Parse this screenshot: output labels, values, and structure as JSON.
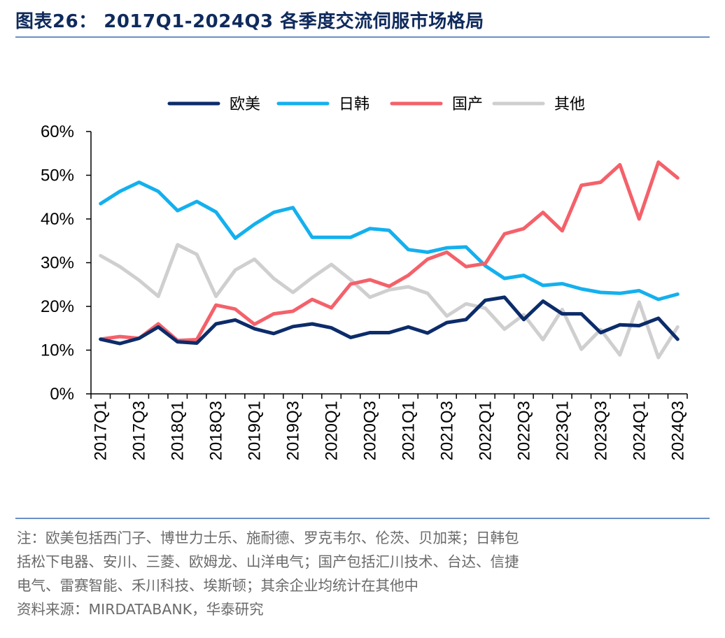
{
  "header": {
    "title": "图表26： 2017Q1-2024Q3 各季度交流伺服市场格局"
  },
  "colors": {
    "欧美": "#0c2c6a",
    "日韩": "#14b0ee",
    "国产": "#f4616a",
    "其他": "#cfcfcf",
    "rule": "#6b8fc6"
  },
  "chart_data": {
    "type": "line",
    "title": "2017Q1-2024Q3 各季度交流伺服市场格局",
    "xlabel": "",
    "ylabel": "",
    "ylim": [
      0,
      60
    ],
    "y_ticks": [
      "0%",
      "10%",
      "20%",
      "30%",
      "40%",
      "50%",
      "60%"
    ],
    "legend_position": "top",
    "categories": [
      "2017Q1",
      "2017Q2",
      "2017Q3",
      "2017Q4",
      "2018Q1",
      "2018Q2",
      "2018Q3",
      "2018Q4",
      "2019Q1",
      "2019Q2",
      "2019Q3",
      "2019Q4",
      "2020Q1",
      "2020Q2",
      "2020Q3",
      "2020Q4",
      "2021Q1",
      "2021Q2",
      "2021Q3",
      "2021Q4",
      "2022Q1",
      "2022Q2",
      "2022Q3",
      "2022Q4",
      "2023Q1",
      "2023Q2",
      "2023Q3",
      "2023Q4",
      "2024Q1",
      "2024Q2",
      "2024Q3"
    ],
    "x_tick_labels": [
      "2017Q1",
      "2017Q3",
      "2018Q1",
      "2018Q3",
      "2019Q1",
      "2019Q3",
      "2020Q1",
      "2020Q3",
      "2021Q1",
      "2021Q3",
      "2022Q1",
      "2022Q3",
      "2023Q1",
      "2023Q3",
      "2024Q1",
      "2024Q3"
    ],
    "series": [
      {
        "name": "欧美",
        "values": [
          12.5,
          11.5,
          12.7,
          15.3,
          11.9,
          11.6,
          16.0,
          16.9,
          14.9,
          13.8,
          15.4,
          16.0,
          15.1,
          12.9,
          14.0,
          14.0,
          15.3,
          13.9,
          16.3,
          17.0,
          21.4,
          22.1,
          17.0,
          21.2,
          18.3,
          18.3,
          14.0,
          15.8,
          15.6,
          17.3,
          12.5
        ]
      },
      {
        "name": "日韩",
        "values": [
          43.5,
          46.3,
          48.4,
          46.3,
          41.9,
          44.0,
          41.6,
          35.6,
          38.8,
          41.5,
          42.6,
          35.8,
          35.8,
          35.8,
          37.8,
          37.4,
          33.0,
          32.4,
          33.4,
          33.6,
          29.3,
          26.4,
          27.1,
          24.8,
          25.2,
          24.0,
          23.2,
          23.0,
          23.6,
          21.6,
          22.8
        ]
      },
      {
        "name": "国产",
        "values": [
          12.5,
          13.1,
          12.7,
          16.0,
          12.2,
          12.4,
          20.3,
          19.4,
          15.9,
          18.3,
          18.9,
          21.6,
          19.7,
          25.1,
          26.1,
          24.6,
          27.1,
          30.8,
          32.4,
          29.1,
          29.8,
          36.6,
          37.8,
          41.5,
          37.3,
          47.7,
          48.4,
          52.4,
          40.0,
          53.0,
          49.4
        ]
      },
      {
        "name": "其他",
        "values": [
          31.6,
          29.1,
          26.0,
          22.3,
          34.1,
          31.9,
          22.3,
          28.3,
          30.8,
          26.4,
          23.2,
          26.6,
          29.6,
          26.1,
          22.1,
          23.8,
          24.5,
          23.0,
          17.8,
          20.6,
          19.6,
          14.8,
          18.1,
          12.4,
          19.3,
          10.2,
          14.7,
          8.9,
          21.0,
          8.3,
          15.3
        ]
      }
    ]
  },
  "notes": {
    "line1": "注：欧美包括西门子、博世力士乐、施耐德、罗克韦尔、伦茨、贝加莱；日韩包",
    "line2": "括松下电器、安川、三菱、欧姆龙、山洋电气；国产包括汇川技术、台达、信捷",
    "line3": "电气、雷赛智能、禾川科技、埃斯顿；其余企业均统计在其他中",
    "line4": "资料来源：MIRDATABANK，华泰研究"
  }
}
